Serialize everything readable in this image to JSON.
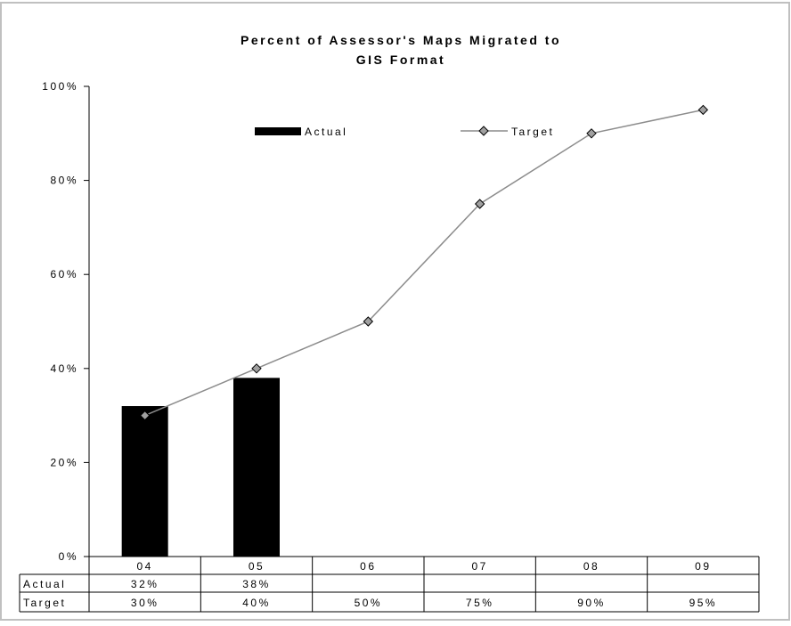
{
  "chart_data": {
    "type": "bar",
    "title_line1": "Percent of Assessor's Maps Migrated to",
    "title_line2": "GIS Format",
    "categories": [
      "04",
      "05",
      "06",
      "07",
      "08",
      "09"
    ],
    "ylim": [
      0,
      100
    ],
    "y_ticks": [
      0,
      20,
      40,
      60,
      80,
      100
    ],
    "y_tick_labels": [
      "0%",
      "20%",
      "40%",
      "60%",
      "80%",
      "100%"
    ],
    "grid": false,
    "legend_position": "top",
    "series": [
      {
        "name": "Actual",
        "kind": "bar",
        "color": "#000000",
        "values": [
          32,
          38,
          null,
          null,
          null,
          null
        ],
        "labels": [
          "32%",
          "38%",
          "",
          "",
          "",
          ""
        ]
      },
      {
        "name": "Target",
        "kind": "line",
        "color": "#8c8c8c",
        "marker_color": "#a0a0a0",
        "values": [
          30,
          40,
          50,
          75,
          90,
          95
        ],
        "labels": [
          "30%",
          "40%",
          "50%",
          "75%",
          "90%",
          "95%"
        ]
      }
    ]
  },
  "colors": {
    "border": "#c0c0c0",
    "axis": "#000000"
  }
}
